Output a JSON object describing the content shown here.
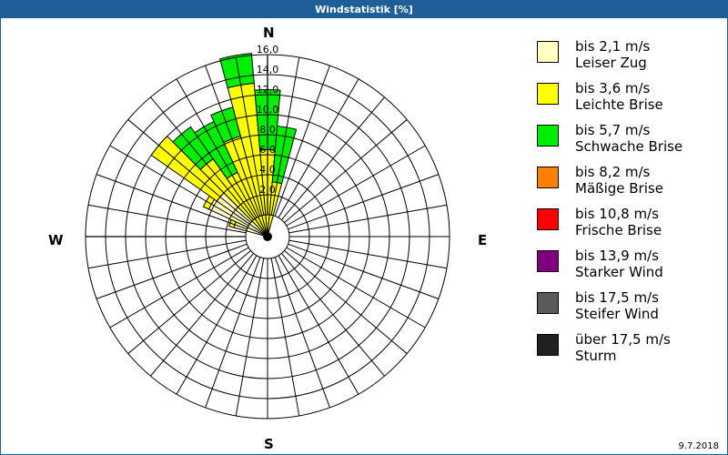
{
  "window": {
    "title": "Windstatistik [%]",
    "date": "9.7.2018",
    "title_bar_color": "#1f5f99"
  },
  "compass": {
    "n": "N",
    "e": "E",
    "s": "S",
    "w": "W"
  },
  "legend": [
    {
      "color": "#ffffc0",
      "line1": "bis 2,1 m/s",
      "line2": "Leiser Zug"
    },
    {
      "color": "#ffff00",
      "line1": "bis 3,6 m/s",
      "line2": "Leichte Brise"
    },
    {
      "color": "#00ee00",
      "line1": "bis 5,7 m/s",
      "line2": "Schwache Brise"
    },
    {
      "color": "#ff8000",
      "line1": "bis 8,2 m/s",
      "line2": "Mäßige Brise"
    },
    {
      "color": "#ff0000",
      "line1": "bis 10,8 m/s",
      "line2": "Frische Brise"
    },
    {
      "color": "#800080",
      "line1": "bis 13,9 m/s",
      "line2": "Starker Wind"
    },
    {
      "color": "#5a5a5a",
      "line1": "bis 17,5 m/s",
      "line2": "Steifer Wind"
    },
    {
      "color": "#202020",
      "line1": "über 17,5 m/s",
      "line2": "Sturm"
    }
  ],
  "chart_data": {
    "type": "wind-rose",
    "title": "Windstatistik [%]",
    "radial_ticks": [
      "2,0",
      "4,0",
      "6,0",
      "8,0",
      "10,0",
      "12,0",
      "14,0",
      "16,0"
    ],
    "radial_max": 16,
    "direction_step_deg": 10,
    "series_names": [
      "Leiser Zug",
      "Leichte Brise",
      "Schwache Brise",
      "Mäßige Brise",
      "Frische Brise",
      "Starker Wind",
      "Steifer Wind",
      "Sturm"
    ],
    "directions": [
      {
        "deg": 290,
        "cumulative": [
          1.3,
          1.8,
          1.8
        ]
      },
      {
        "deg": 300,
        "cumulative": [
          4.3,
          4.9,
          4.9
        ]
      },
      {
        "deg": 310,
        "cumulative": [
          4.0,
          12.0,
          12.0
        ]
      },
      {
        "deg": 320,
        "cumulative": [
          0.0,
          7.3,
          11.2
        ]
      },
      {
        "deg": 330,
        "cumulative": [
          0.0,
          4.9,
          10.5
        ]
      },
      {
        "deg": 340,
        "cumulative": [
          0.0,
          8.2,
          11.2
        ]
      },
      {
        "deg": 350,
        "cumulative": [
          0.0,
          13.2,
          16.2
        ]
      },
      {
        "deg": 0,
        "cumulative": [
          0.0,
          6.5,
          12.5
        ]
      },
      {
        "deg": 10,
        "cumulative": [
          0.0,
          3.3,
          8.9
        ]
      }
    ]
  }
}
